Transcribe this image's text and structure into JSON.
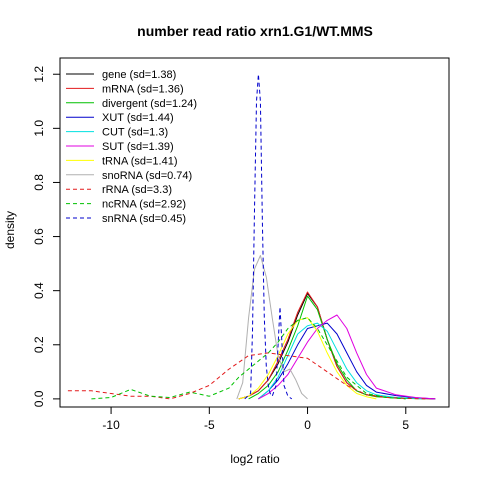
{
  "chart_data": {
    "type": "line",
    "title": "number read ratio xrn1.G1/WT.MMS",
    "xlabel": "log2 ratio",
    "ylabel": "density",
    "xlim": [
      -12.6,
      7.2
    ],
    "ylim": [
      -0.03,
      1.26
    ],
    "x_ticks": [
      -10,
      -5,
      0,
      5
    ],
    "y_ticks": [
      0.0,
      0.2,
      0.4,
      0.6,
      0.8,
      1.0,
      1.2
    ],
    "grid": false,
    "legend_position": "top-left",
    "series": [
      {
        "name": "gene (sd=1.38)",
        "color": "#000000",
        "dash": "solid",
        "x": [
          -3.5,
          -3.0,
          -2.5,
          -2.0,
          -1.5,
          -1.0,
          -0.5,
          0.0,
          0.5,
          1.0,
          1.5,
          2.0,
          2.5,
          3.0,
          4.0,
          5.0,
          6.5
        ],
        "y": [
          0.0,
          0.01,
          0.03,
          0.07,
          0.13,
          0.21,
          0.31,
          0.39,
          0.34,
          0.22,
          0.12,
          0.06,
          0.03,
          0.015,
          0.006,
          0.003,
          0.0
        ]
      },
      {
        "name": "mRNA (sd=1.36)",
        "color": "#e31a1c",
        "dash": "solid",
        "x": [
          -3.5,
          -3.0,
          -2.5,
          -2.0,
          -1.5,
          -1.0,
          -0.5,
          0.0,
          0.5,
          1.0,
          1.5,
          2.0,
          2.5,
          3.0,
          4.0,
          5.0,
          6.5
        ],
        "y": [
          0.0,
          0.01,
          0.03,
          0.07,
          0.14,
          0.22,
          0.32,
          0.395,
          0.34,
          0.22,
          0.12,
          0.06,
          0.03,
          0.015,
          0.006,
          0.003,
          0.0
        ]
      },
      {
        "name": "divergent (sd=1.24)",
        "color": "#00c000",
        "dash": "solid",
        "x": [
          -3.0,
          -2.5,
          -2.0,
          -1.5,
          -1.0,
          -0.5,
          0.0,
          0.5,
          1.0,
          1.5,
          2.0,
          2.5,
          3.0,
          3.5,
          4.5,
          6.0
        ],
        "y": [
          0.0,
          0.02,
          0.05,
          0.1,
          0.18,
          0.27,
          0.38,
          0.33,
          0.22,
          0.13,
          0.07,
          0.03,
          0.015,
          0.008,
          0.003,
          0.0
        ]
      },
      {
        "name": "XUT (sd=1.44)",
        "color": "#0000cc",
        "dash": "solid",
        "x": [
          -2.5,
          -2.0,
          -1.5,
          -1.0,
          -0.5,
          0.0,
          0.5,
          1.0,
          1.5,
          2.0,
          2.5,
          3.0,
          3.5,
          4.5,
          5.5,
          6.5
        ],
        "y": [
          0.0,
          0.03,
          0.07,
          0.13,
          0.2,
          0.26,
          0.27,
          0.28,
          0.24,
          0.17,
          0.1,
          0.05,
          0.025,
          0.012,
          0.004,
          0.0
        ]
      },
      {
        "name": "CUT (sd=1.3)",
        "color": "#00e0e0",
        "dash": "solid",
        "x": [
          -2.5,
          -2.0,
          -1.5,
          -1.0,
          -0.5,
          0.0,
          0.5,
          1.0,
          1.5,
          2.0,
          2.5,
          3.0,
          3.5,
          4.5,
          6.0
        ],
        "y": [
          0.0,
          0.03,
          0.08,
          0.16,
          0.24,
          0.27,
          0.28,
          0.25,
          0.18,
          0.11,
          0.06,
          0.03,
          0.015,
          0.005,
          0.0
        ]
      },
      {
        "name": "SUT (sd=1.39)",
        "color": "#e000e0",
        "dash": "solid",
        "x": [
          -2.5,
          -2.0,
          -1.5,
          -1.0,
          -0.5,
          0.0,
          0.5,
          1.0,
          1.5,
          2.0,
          2.5,
          3.0,
          3.5,
          4.5,
          5.5,
          6.5
        ],
        "y": [
          0.0,
          0.02,
          0.05,
          0.09,
          0.15,
          0.21,
          0.26,
          0.29,
          0.31,
          0.26,
          0.17,
          0.09,
          0.04,
          0.015,
          0.005,
          0.0
        ]
      },
      {
        "name": "tRNA (sd=1.41)",
        "color": "#ffff00",
        "dash": "solid",
        "x": [
          -3.5,
          -3.0,
          -2.5,
          -2.0,
          -1.5,
          -1.0,
          -0.5,
          0.0,
          0.5,
          1.0,
          1.5,
          2.0,
          2.5,
          3.0,
          3.5
        ],
        "y": [
          0.0,
          0.01,
          0.04,
          0.09,
          0.16,
          0.24,
          0.29,
          0.3,
          0.25,
          0.17,
          0.1,
          0.05,
          0.02,
          0.008,
          0.0
        ]
      },
      {
        "name": "snoRNA (sd=0.74)",
        "color": "#b0b0b0",
        "dash": "solid",
        "x": [
          -3.6,
          -3.3,
          -3.0,
          -2.7,
          -2.4,
          -2.1,
          -1.8,
          -1.5,
          -1.2,
          -0.9,
          -0.6,
          -0.3,
          0.0
        ],
        "y": [
          0.0,
          0.06,
          0.3,
          0.48,
          0.53,
          0.45,
          0.3,
          0.16,
          0.1,
          0.11,
          0.07,
          0.02,
          0.0
        ]
      },
      {
        "name": "rRNA (sd=3.3)",
        "color": "#e31a1c",
        "dash": "dashed",
        "x": [
          -12.2,
          -11.0,
          -10.0,
          -9.0,
          -8.0,
          -7.0,
          -6.0,
          -5.0,
          -4.0,
          -3.0,
          -2.0,
          -1.0,
          0.0,
          1.0,
          2.0,
          3.0,
          4.0,
          5.0,
          6.0
        ],
        "y": [
          0.03,
          0.03,
          0.02,
          0.01,
          0.01,
          0.0,
          0.02,
          0.05,
          0.11,
          0.16,
          0.17,
          0.16,
          0.15,
          0.1,
          0.05,
          0.015,
          0.005,
          0.002,
          0.0
        ]
      },
      {
        "name": "ncRNA (sd=2.92)",
        "color": "#00c000",
        "dash": "dashed",
        "x": [
          -11.0,
          -10.0,
          -9.0,
          -8.0,
          -7.0,
          -6.0,
          -5.0,
          -4.0,
          -3.5,
          -3.0,
          -2.5,
          -2.0,
          -1.5,
          -1.0,
          -0.5,
          0.0,
          0.5,
          1.0,
          2.0,
          3.0,
          4.0,
          5.0
        ],
        "y": [
          0.0,
          0.005,
          0.035,
          0.01,
          0.005,
          0.025,
          0.01,
          0.04,
          0.08,
          0.11,
          0.14,
          0.17,
          0.21,
          0.26,
          0.29,
          0.3,
          0.26,
          0.2,
          0.08,
          0.02,
          0.005,
          0.0
        ]
      },
      {
        "name": "snRNA (sd=0.45)",
        "color": "#0000cc",
        "dash": "dashed",
        "x": [
          -3.2,
          -2.9,
          -2.8,
          -2.7,
          -2.6,
          -2.5,
          -2.4,
          -2.3,
          -2.2,
          -2.1,
          -2.0,
          -1.9,
          -1.8,
          -1.6,
          -1.5,
          -1.4,
          -1.3,
          -1.2,
          -1.0,
          -0.8
        ],
        "y": [
          0.0,
          0.02,
          0.25,
          0.7,
          1.1,
          1.2,
          1.1,
          0.65,
          0.3,
          0.12,
          0.05,
          0.02,
          0.01,
          0.05,
          0.2,
          0.34,
          0.2,
          0.05,
          0.01,
          0.0
        ]
      }
    ]
  }
}
